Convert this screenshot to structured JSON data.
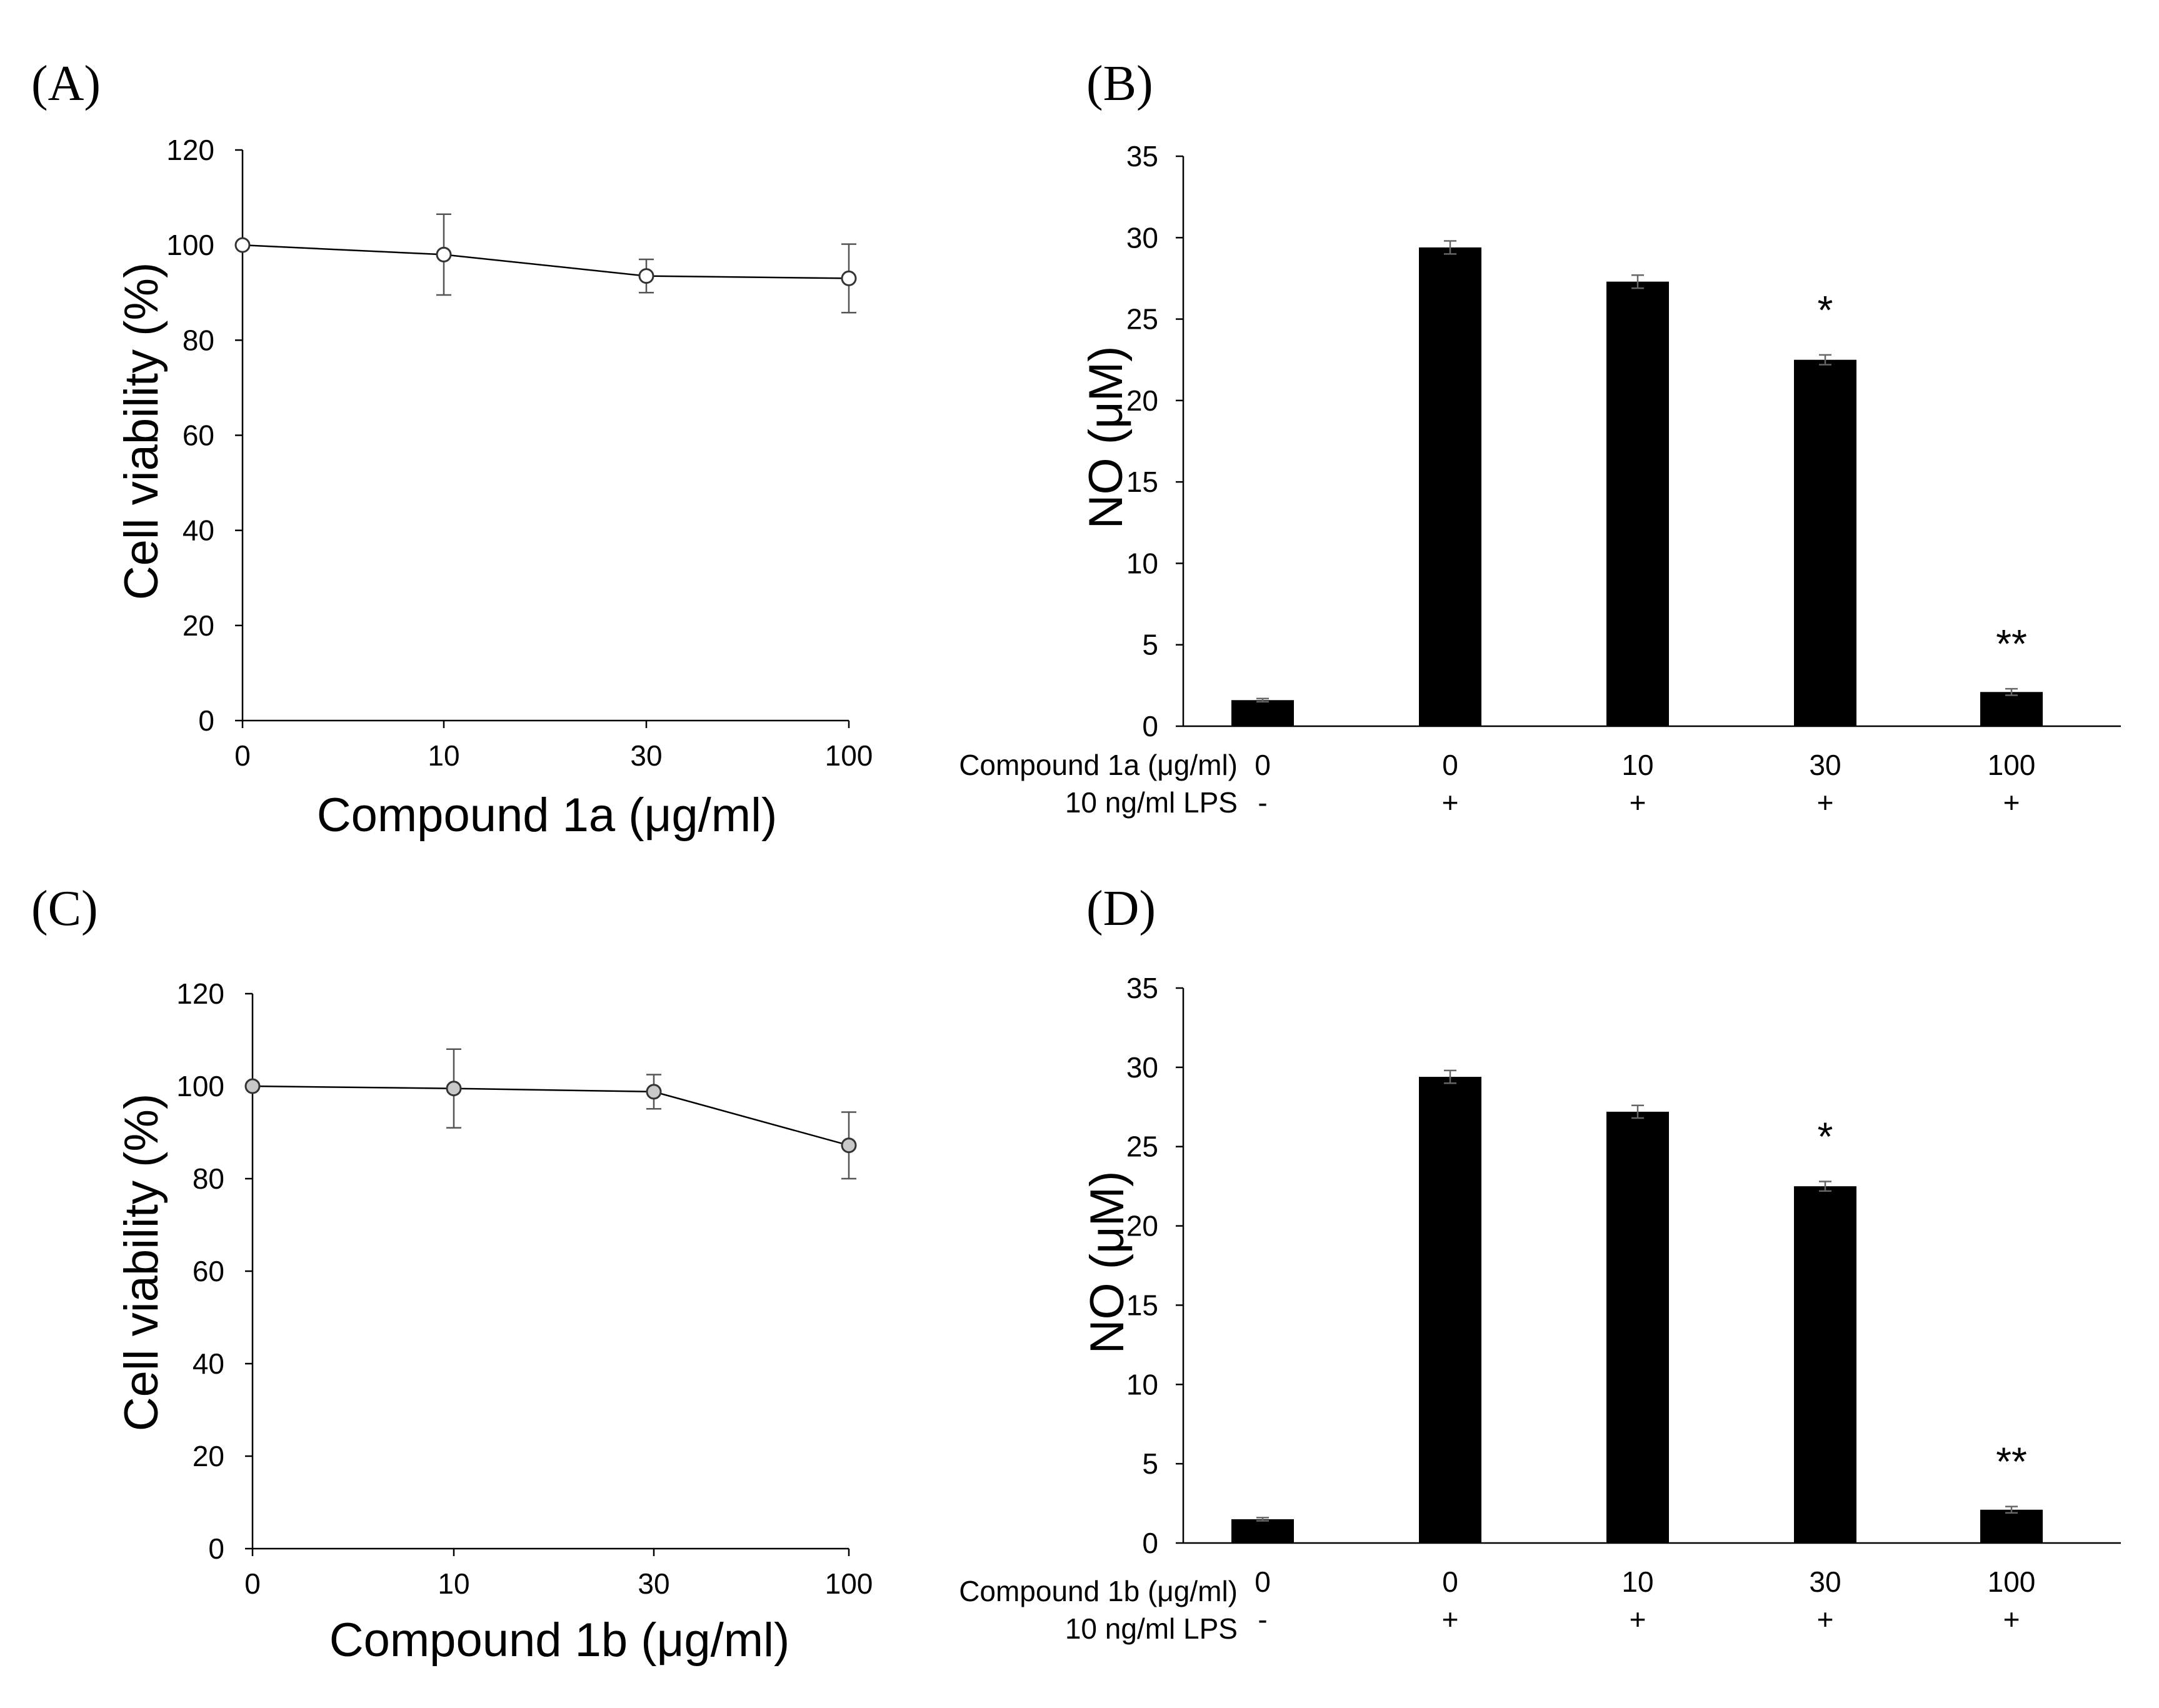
{
  "chart_data": [
    {
      "panel_label": "(A)",
      "type": "line",
      "xlabel": "Compound 1a (μg/ml)",
      "ylabel": "Cell viability (%)",
      "ylim": [
        0,
        120
      ],
      "yticks": [
        0,
        20,
        40,
        60,
        80,
        100,
        120
      ],
      "categories": [
        "0",
        "10",
        "30",
        "100"
      ],
      "marker_fill": "#ffffff",
      "series": [
        {
          "values": [
            100,
            98,
            93.5,
            93
          ],
          "errors": [
            0,
            8.5,
            3.5,
            7.2
          ]
        }
      ],
      "grid": false,
      "legend": "none"
    },
    {
      "panel_label": "(B)",
      "type": "bar",
      "ylabel": "NO (μM)",
      "ylim": [
        0,
        35
      ],
      "yticks": [
        0,
        5,
        10,
        15,
        20,
        25,
        30,
        35
      ],
      "row_labels": [
        "Compound 1a (μg/ml)",
        "10 ng/ml LPS"
      ],
      "categories": [
        "0",
        "0",
        "10",
        "30",
        "100"
      ],
      "lps": [
        "-",
        "+",
        "+",
        "+",
        "+"
      ],
      "values": [
        1.6,
        29.4,
        27.3,
        22.5,
        2.1
      ],
      "errors": [
        0.1,
        0.4,
        0.4,
        0.3,
        0.2
      ],
      "significance": [
        "",
        "",
        "",
        "*",
        "**"
      ],
      "bar_color": "#000000",
      "grid": false,
      "legend": "none"
    },
    {
      "panel_label": "(C)",
      "type": "line",
      "xlabel": "Compound 1b (μg/ml)",
      "ylabel": "Cell  viability (%)",
      "ylim": [
        0,
        120
      ],
      "yticks": [
        0,
        20,
        40,
        60,
        80,
        100,
        120
      ],
      "categories": [
        "0",
        "10",
        "30",
        "100"
      ],
      "marker_fill": "#c8c8c8",
      "series": [
        {
          "values": [
            100,
            99.5,
            98.8,
            87.2
          ],
          "errors": [
            0,
            8.5,
            3.7,
            7.2
          ]
        }
      ],
      "grid": false,
      "legend": "none"
    },
    {
      "panel_label": "(D)",
      "type": "bar",
      "ylabel": "NO (μM)",
      "ylim": [
        0,
        35
      ],
      "yticks": [
        0,
        5,
        10,
        15,
        20,
        25,
        30,
        35
      ],
      "row_labels": [
        "Compound 1b (μg/ml)",
        "10 ng/ml LPS"
      ],
      "categories": [
        "0",
        "0",
        "10",
        "30",
        "100"
      ],
      "lps": [
        "-",
        "+",
        "+",
        "+",
        "+"
      ],
      "values": [
        1.5,
        29.4,
        27.2,
        22.5,
        2.1
      ],
      "errors": [
        0.1,
        0.4,
        0.4,
        0.3,
        0.2
      ],
      "significance": [
        "",
        "",
        "",
        "*",
        "**"
      ],
      "bar_color": "#000000",
      "grid": false,
      "legend": "none"
    }
  ]
}
